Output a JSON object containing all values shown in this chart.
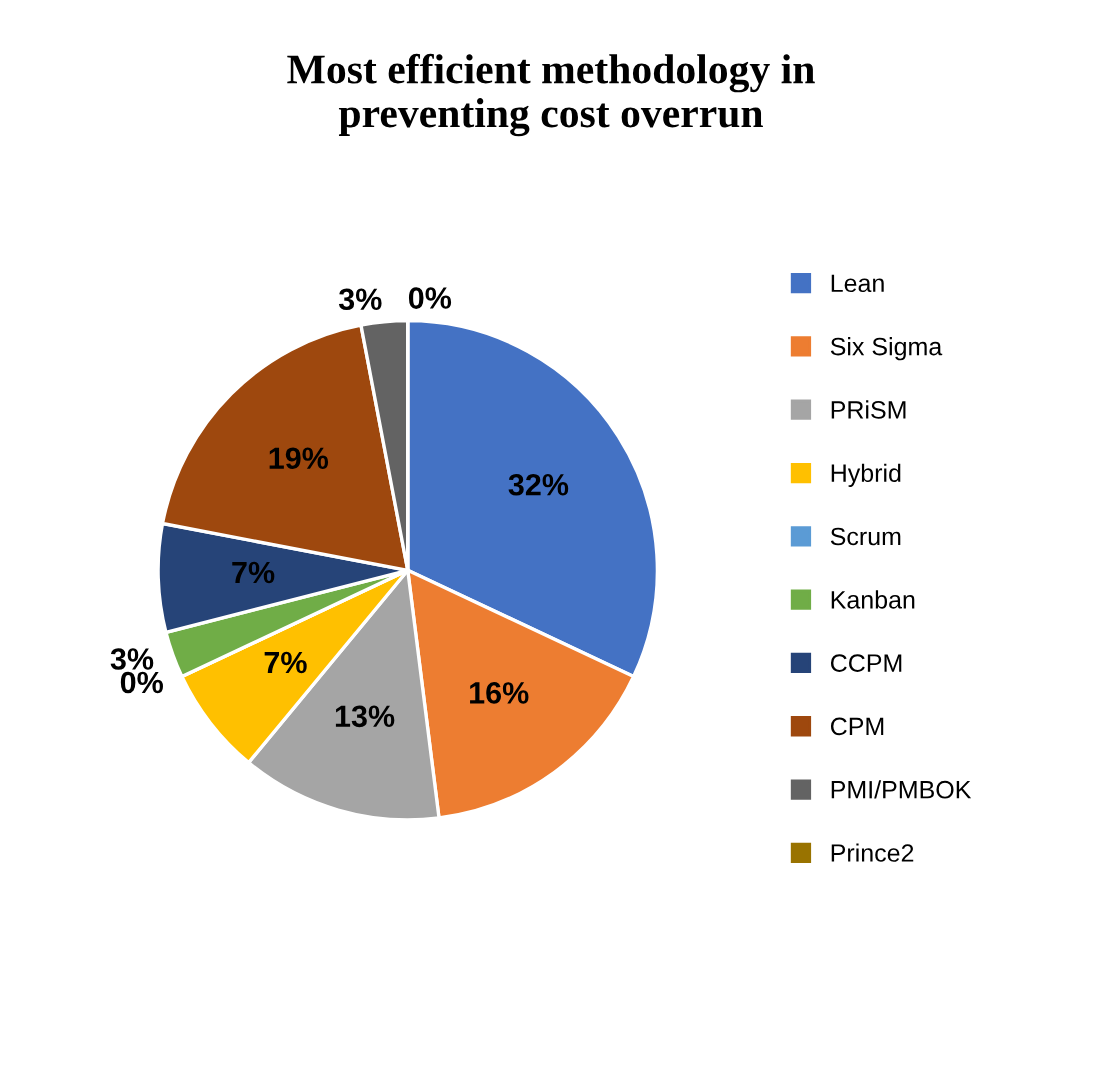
{
  "chart_data": {
    "type": "pie",
    "title": "Most efficient methodology in\npreventing cost overrun",
    "categories": [
      "Lean",
      "Six Sigma",
      "PRiSM",
      "Hybrid",
      "Scrum",
      "Kanban",
      "CCPM",
      "CPM",
      "PMI/PMBOK",
      "Prince2"
    ],
    "values": [
      32,
      16,
      13,
      7,
      0,
      3,
      7,
      19,
      3,
      0
    ],
    "value_labels": [
      "32%",
      "16%",
      "13%",
      "7%",
      "0%",
      "3%",
      "7%",
      "19%",
      "3%",
      "0%"
    ],
    "colors": [
      "#4472c4",
      "#ed7d31",
      "#a5a5a5",
      "#ffc000",
      "#5b9bd5",
      "#70ad47",
      "#264478",
      "#9e480e",
      "#636363",
      "#997300"
    ],
    "legend": "right"
  }
}
